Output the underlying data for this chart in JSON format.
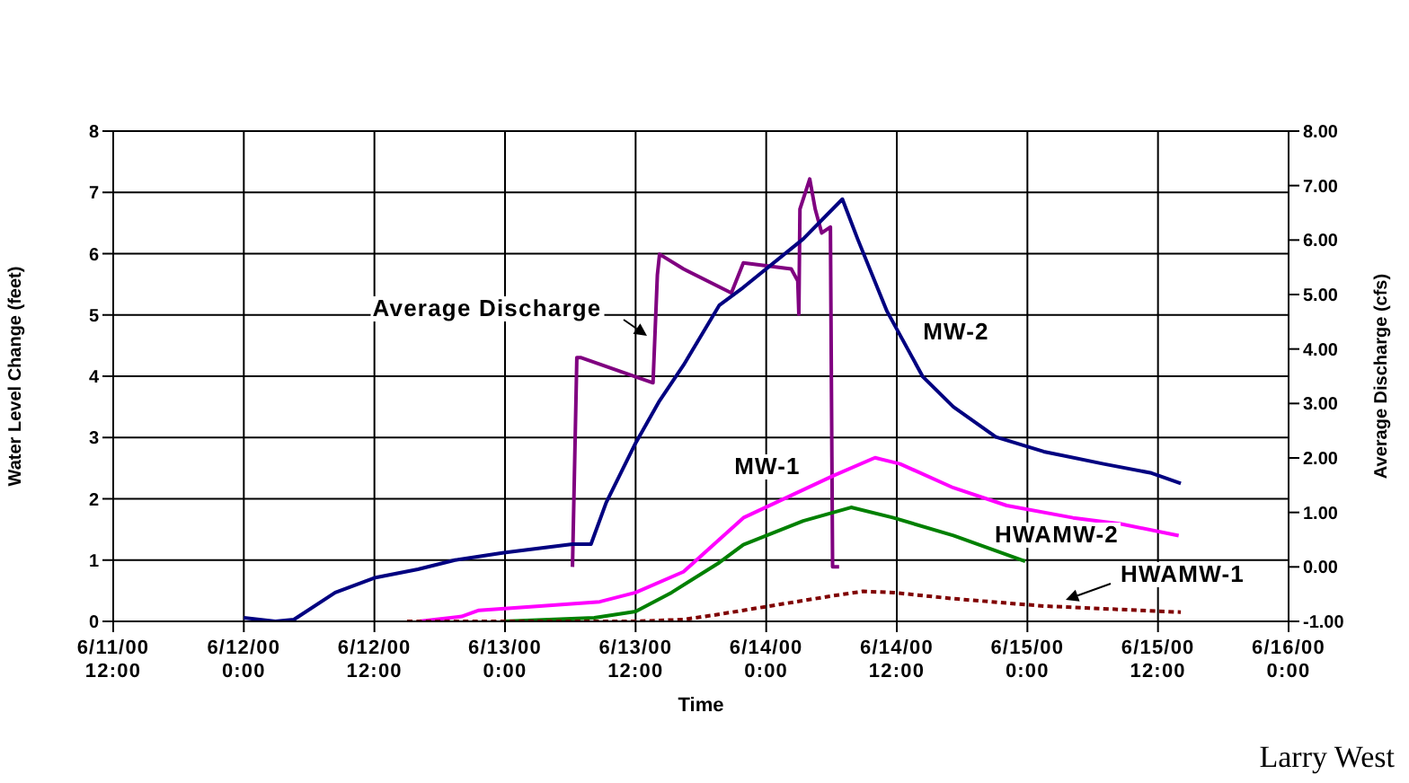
{
  "chart_data": {
    "type": "line",
    "xlabel": "Time",
    "ylabel": "Water Level Change (feet)",
    "y2label": "Average Discharge (cfs)",
    "annotations": [
      "Larry West"
    ],
    "xlim": [
      "2000-06-11T12:00",
      "2000-06-16T00:00"
    ],
    "xticks": [
      {
        "value": "2000-06-11T12:00",
        "label": "6/11/00 12:00"
      },
      {
        "value": "2000-06-12T00:00",
        "label": "6/12/00 0:00"
      },
      {
        "value": "2000-06-12T12:00",
        "label": "6/12/00 12:00"
      },
      {
        "value": "2000-06-13T00:00",
        "label": "6/13/00 0:00"
      },
      {
        "value": "2000-06-13T12:00",
        "label": "6/13/00 12:00"
      },
      {
        "value": "2000-06-14T00:00",
        "label": "6/14/00 0:00"
      },
      {
        "value": "2000-06-14T12:00",
        "label": "6/14/00 12:00"
      },
      {
        "value": "2000-06-15T00:00",
        "label": "6/15/00 0:00"
      },
      {
        "value": "2000-06-15T12:00",
        "label": "6/15/00 12:00"
      },
      {
        "value": "2000-06-16T00:00",
        "label": "6/16/00 0:00"
      }
    ],
    "ylim": [
      0,
      8
    ],
    "yticks": [
      0,
      1,
      2,
      3,
      4,
      5,
      6,
      7,
      8
    ],
    "y2lim": [
      -1,
      8
    ],
    "y2ticks": [
      {
        "value": -1,
        "label": "-1.00"
      },
      {
        "value": 0,
        "label": "0.00"
      },
      {
        "value": 1,
        "label": "1.00"
      },
      {
        "value": 2,
        "label": "2.00"
      },
      {
        "value": 3,
        "label": "3.00"
      },
      {
        "value": 4,
        "label": "4.00"
      },
      {
        "value": 5,
        "label": "5.00"
      },
      {
        "value": 6,
        "label": "6.00"
      },
      {
        "value": 7,
        "label": "7.00"
      },
      {
        "value": 8,
        "label": "8.00"
      }
    ],
    "grid": true,
    "series": [
      {
        "name": "Average Discharge",
        "color": "#800080",
        "axis": "y2",
        "x": [
          "2000-06-13T06:12",
          "2000-06-13T06:36",
          "2000-06-13T07:00",
          "2000-06-13T13:36",
          "2000-06-13T14:00",
          "2000-06-13T14:12",
          "2000-06-13T16:24",
          "2000-06-13T20:48",
          "2000-06-13T21:54",
          "2000-06-14T02:18",
          "2000-06-14T02:54",
          "2000-06-14T03:00",
          "2000-06-14T03:06",
          "2000-06-14T04:00",
          "2000-06-14T04:30",
          "2000-06-14T05:06",
          "2000-06-14T05:54",
          "2000-06-14T06:06",
          "2000-06-14T06:42"
        ],
        "values": [
          0.0,
          3.84,
          3.84,
          3.38,
          5.36,
          5.74,
          5.47,
          5.03,
          5.58,
          5.47,
          5.25,
          4.64,
          6.57,
          7.12,
          6.57,
          6.13,
          6.24,
          0.0,
          0.0
        ]
      },
      {
        "name": "MW-2",
        "color": "#000080",
        "x": [
          "2000-06-12T00:00",
          "2000-06-12T02:54",
          "2000-06-12T04:36",
          "2000-06-12T08:24",
          "2000-06-12T12:00",
          "2000-06-12T16:00",
          "2000-06-12T19:24",
          "2000-06-12T23:54",
          "2000-06-13T06:12",
          "2000-06-13T07:54",
          "2000-06-13T09:18",
          "2000-06-13T12:00",
          "2000-06-13T14:12",
          "2000-06-13T16:24",
          "2000-06-13T19:42",
          "2000-06-13T21:54",
          "2000-06-14T03:24",
          "2000-06-14T07:00",
          "2000-06-14T08:24",
          "2000-06-14T11:06",
          "2000-06-14T14:24",
          "2000-06-14T17:12",
          "2000-06-14T21:06",
          "2000-06-15T01:30",
          "2000-06-15T07:00",
          "2000-06-15T11:24",
          "2000-06-15T14:06"
        ],
        "values": [
          0.06,
          0,
          0.03,
          0.47,
          0.71,
          0.85,
          1.0,
          1.12,
          1.26,
          1.26,
          1.94,
          2.91,
          3.6,
          4.18,
          5.16,
          5.45,
          6.24,
          6.89,
          6.24,
          5.06,
          3.99,
          3.5,
          3.01,
          2.77,
          2.57,
          2.42,
          2.25
        ]
      },
      {
        "name": "MW-1",
        "color": "#ff00ff",
        "x": [
          "2000-06-12T16:06",
          "2000-06-12T20:00",
          "2000-06-12T21:36",
          "2000-06-13T03:12",
          "2000-06-13T08:42",
          "2000-06-13T12:00",
          "2000-06-13T16:24",
          "2000-06-13T21:54",
          "2000-06-14T06:12",
          "2000-06-14T10:00",
          "2000-06-14T12:18",
          "2000-06-14T17:12",
          "2000-06-14T22:06",
          "2000-06-15T04:12",
          "2000-06-15T08:36",
          "2000-06-15T13:54"
        ],
        "values": [
          0,
          0.08,
          0.18,
          0.25,
          0.32,
          0.47,
          0.81,
          1.69,
          2.38,
          2.67,
          2.57,
          2.18,
          1.89,
          1.69,
          1.59,
          1.4
        ]
      },
      {
        "name": "HWAMW-2",
        "color": "#008000",
        "x": [
          "2000-06-12T23:54",
          "2000-06-13T08:12",
          "2000-06-13T12:00",
          "2000-06-13T15:18",
          "2000-06-13T19:42",
          "2000-06-13T21:54",
          "2000-06-14T03:24",
          "2000-06-14T07:48",
          "2000-06-14T11:42",
          "2000-06-14T17:12",
          "2000-06-14T23:48"
        ],
        "values": [
          0,
          0.06,
          0.16,
          0.47,
          0.96,
          1.25,
          1.64,
          1.86,
          1.69,
          1.4,
          0.98
        ]
      },
      {
        "name": "HWAMW-1",
        "color": "#800000",
        "line_style": "dashed",
        "x": [
          "2000-06-12T15:00",
          "2000-06-13T12:00",
          "2000-06-13T16:24",
          "2000-06-13T19:06",
          "2000-06-13T21:54",
          "2000-06-14T06:12",
          "2000-06-14T08:54",
          "2000-06-14T11:42",
          "2000-06-14T17:12",
          "2000-06-15T01:30",
          "2000-06-15T14:06"
        ],
        "values": [
          0,
          0.0,
          0.03,
          0.1,
          0.18,
          0.42,
          0.49,
          0.47,
          0.37,
          0.25,
          0.15
        ]
      }
    ]
  }
}
